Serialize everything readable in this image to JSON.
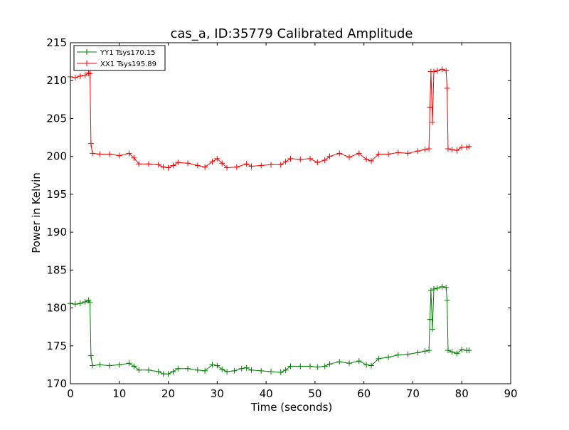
{
  "chart_data": {
    "type": "line",
    "title": "cas_a, ID:35779 Calibrated Amplitude",
    "xlabel": "Time (seconds)",
    "ylabel": "Power in Kelvin",
    "xlim": [
      0,
      90
    ],
    "ylim": [
      170,
      215
    ],
    "xticks": [
      0,
      10,
      20,
      30,
      40,
      50,
      60,
      70,
      80,
      90
    ],
    "yticks": [
      170,
      175,
      180,
      185,
      190,
      195,
      200,
      205,
      210,
      215
    ],
    "grid": false,
    "legend_position": "top-left",
    "marker": "+",
    "series": [
      {
        "name": "YY1 Tsys170.15",
        "color": "#008000",
        "points": [
          [
            0.0,
            180.6
          ],
          [
            1.0,
            180.5
          ],
          [
            2.0,
            180.6
          ],
          [
            3.0,
            180.8
          ],
          [
            3.7,
            181.0
          ],
          [
            4.0,
            180.7
          ],
          [
            4.2,
            173.7
          ],
          [
            4.5,
            172.4
          ],
          [
            6.0,
            172.5
          ],
          [
            8.0,
            172.4
          ],
          [
            10.0,
            172.5
          ],
          [
            12.0,
            172.7
          ],
          [
            13.0,
            172.3
          ],
          [
            14.0,
            171.8
          ],
          [
            16.0,
            171.8
          ],
          [
            18.0,
            171.6
          ],
          [
            19.0,
            171.3
          ],
          [
            20.0,
            171.3
          ],
          [
            21.0,
            171.6
          ],
          [
            22.0,
            172.0
          ],
          [
            24.0,
            172.0
          ],
          [
            26.0,
            171.8
          ],
          [
            27.5,
            171.7
          ],
          [
            29.0,
            172.5
          ],
          [
            30.0,
            172.4
          ],
          [
            31.0,
            171.9
          ],
          [
            32.0,
            171.6
          ],
          [
            33.5,
            171.7
          ],
          [
            35.0,
            172.0
          ],
          [
            36.0,
            172.1
          ],
          [
            37.0,
            171.8
          ],
          [
            39.0,
            171.7
          ],
          [
            41.0,
            171.6
          ],
          [
            43.0,
            171.5
          ],
          [
            44.0,
            171.8
          ],
          [
            45.0,
            172.3
          ],
          [
            47.0,
            172.3
          ],
          [
            49.0,
            172.3
          ],
          [
            50.5,
            172.2
          ],
          [
            52.0,
            172.3
          ],
          [
            53.0,
            172.6
          ],
          [
            55.0,
            172.9
          ],
          [
            57.0,
            172.7
          ],
          [
            59.0,
            173.0
          ],
          [
            60.5,
            172.5
          ],
          [
            61.5,
            172.4
          ],
          [
            63.0,
            173.3
          ],
          [
            65.0,
            173.5
          ],
          [
            67.0,
            173.8
          ],
          [
            69.0,
            173.9
          ],
          [
            71.0,
            174.1
          ],
          [
            72.5,
            174.3
          ],
          [
            73.3,
            174.4
          ],
          [
            73.5,
            178.5
          ],
          [
            73.7,
            182.3
          ],
          [
            74.0,
            177.2
          ],
          [
            74.3,
            182.5
          ],
          [
            75.0,
            182.6
          ],
          [
            76.0,
            182.8
          ],
          [
            76.8,
            182.7
          ],
          [
            77.0,
            181.0
          ],
          [
            77.2,
            174.4
          ],
          [
            78.0,
            174.2
          ],
          [
            79.0,
            174.0
          ],
          [
            80.0,
            174.5
          ],
          [
            81.0,
            174.4
          ],
          [
            81.5,
            174.4
          ]
        ]
      },
      {
        "name": "XX1 Tsys195.89",
        "color": "#ff0000",
        "points": [
          [
            0.0,
            210.5
          ],
          [
            1.0,
            210.4
          ],
          [
            2.0,
            210.6
          ],
          [
            3.0,
            210.7
          ],
          [
            3.7,
            211.0
          ],
          [
            4.0,
            210.9
          ],
          [
            4.2,
            201.7
          ],
          [
            4.5,
            200.4
          ],
          [
            6.0,
            200.3
          ],
          [
            8.0,
            200.3
          ],
          [
            10.0,
            200.1
          ],
          [
            12.0,
            200.4
          ],
          [
            13.0,
            199.8
          ],
          [
            14.0,
            199.0
          ],
          [
            16.0,
            199.0
          ],
          [
            18.0,
            198.9
          ],
          [
            19.0,
            198.6
          ],
          [
            20.0,
            198.5
          ],
          [
            21.0,
            198.8
          ],
          [
            22.0,
            199.2
          ],
          [
            24.0,
            199.1
          ],
          [
            26.0,
            198.8
          ],
          [
            27.5,
            198.6
          ],
          [
            29.0,
            199.3
          ],
          [
            30.0,
            199.7
          ],
          [
            31.0,
            199.1
          ],
          [
            32.0,
            198.5
          ],
          [
            34.0,
            198.6
          ],
          [
            36.0,
            199.0
          ],
          [
            37.0,
            198.7
          ],
          [
            39.0,
            198.8
          ],
          [
            41.0,
            198.9
          ],
          [
            43.0,
            198.9
          ],
          [
            44.0,
            199.3
          ],
          [
            45.0,
            199.7
          ],
          [
            47.0,
            199.6
          ],
          [
            49.0,
            199.7
          ],
          [
            50.5,
            199.2
          ],
          [
            52.0,
            199.5
          ],
          [
            53.0,
            200.0
          ],
          [
            55.0,
            200.4
          ],
          [
            57.0,
            199.9
          ],
          [
            59.0,
            200.4
          ],
          [
            60.5,
            199.6
          ],
          [
            61.5,
            199.4
          ],
          [
            63.0,
            200.3
          ],
          [
            65.0,
            200.3
          ],
          [
            67.0,
            200.5
          ],
          [
            69.0,
            200.4
          ],
          [
            71.0,
            200.7
          ],
          [
            72.5,
            200.9
          ],
          [
            73.3,
            201.0
          ],
          [
            73.5,
            206.5
          ],
          [
            73.7,
            211.2
          ],
          [
            74.0,
            204.5
          ],
          [
            74.3,
            211.2
          ],
          [
            75.0,
            211.3
          ],
          [
            76.0,
            211.5
          ],
          [
            76.8,
            211.3
          ],
          [
            77.0,
            209.0
          ],
          [
            77.2,
            201.0
          ],
          [
            78.0,
            200.9
          ],
          [
            79.0,
            200.8
          ],
          [
            80.0,
            201.2
          ],
          [
            81.0,
            201.2
          ],
          [
            81.5,
            201.3
          ]
        ]
      }
    ]
  }
}
